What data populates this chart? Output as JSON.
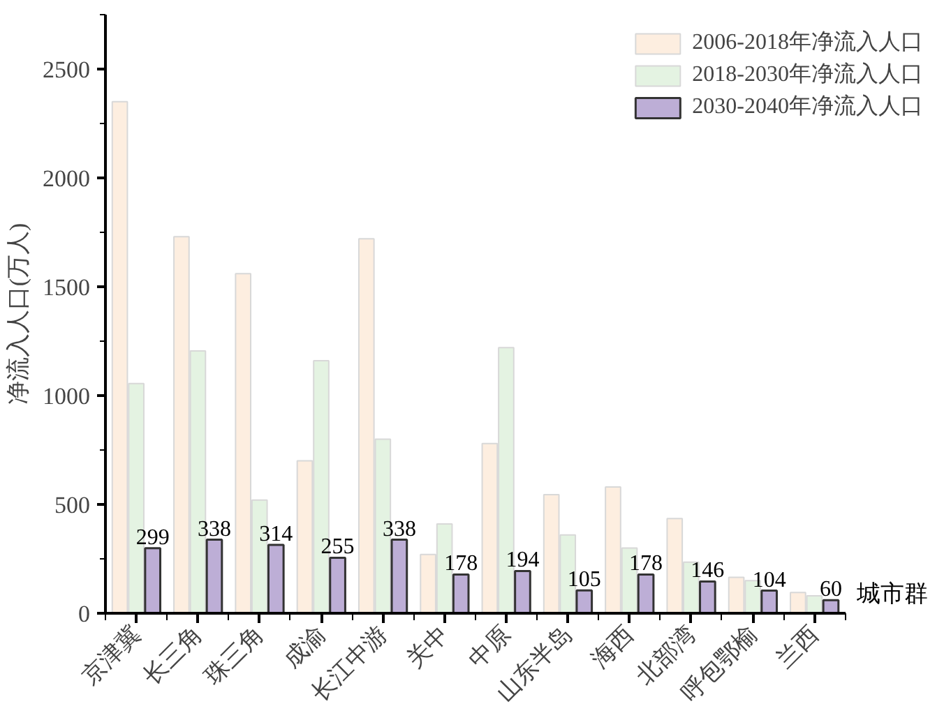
{
  "chart_data": {
    "type": "bar",
    "xlabel": "城市群",
    "ylabel": "净流入人口(万人)",
    "categories": [
      "京津冀",
      "长三角",
      "珠三角",
      "成渝",
      "长江中游",
      "关中",
      "中原",
      "山东半岛",
      "海西",
      "北部湾",
      "呼包鄂榆",
      "兰西"
    ],
    "series": [
      {
        "name": "2006-2018年净流入人口",
        "color": "#fdeee0",
        "values": [
          2350,
          1730,
          1560,
          700,
          1720,
          270,
          780,
          545,
          580,
          435,
          165,
          95
        ]
      },
      {
        "name": "2018-2030年净流入人口",
        "color": "#e4f3e2",
        "values": [
          1055,
          1205,
          520,
          1160,
          800,
          410,
          1220,
          360,
          300,
          235,
          150,
          80
        ]
      },
      {
        "name": "2030-2040年净流入人口",
        "color": "#bdaed6",
        "values": [
          299,
          338,
          314,
          255,
          338,
          178,
          194,
          105,
          178,
          146,
          104,
          60
        ],
        "value_labels": [
          "299",
          "338",
          "314",
          "255",
          "338",
          "178",
          "194",
          "105",
          "178",
          "146",
          "104",
          "60"
        ]
      }
    ],
    "ylim": [
      0,
      2750
    ],
    "yticks": [
      0,
      500,
      1000,
      1500,
      2000,
      2500
    ],
    "grid": false,
    "legend": "top right"
  }
}
